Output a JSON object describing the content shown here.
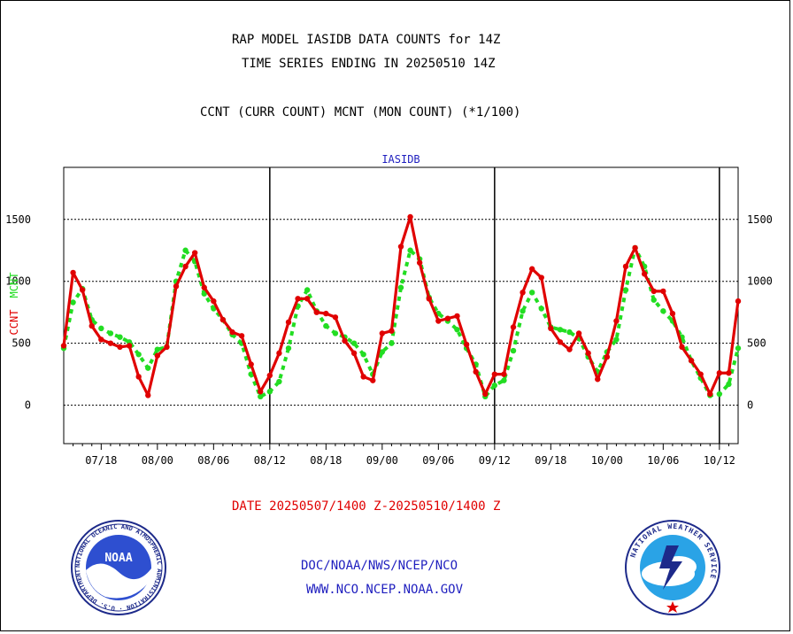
{
  "header": {
    "title_line1": "RAP MODEL IASIDB DATA COUNTS for 14Z",
    "title_line2": "TIME SERIES ENDING IN 20250510 14Z",
    "legend_line": "CCNT (CURR COUNT) MCNT (MON COUNT) (*1/100)"
  },
  "footer": {
    "date_range": "DATE 20250507/1400 Z-20250510/1400 Z",
    "org_path": "DOC/NOAA/NWS/NCEP/NCO",
    "website": "WWW.NCO.NCEP.NOAA.GOV"
  },
  "logos": {
    "noaa_text": "NOAA",
    "noaa_ring_text": "NATIONAL OCEANIC AND ATMOSPHERIC ADMINISTRATION · U.S. DEPARTMENT OF COMMERCE",
    "nws_ring_text": "NATIONAL WEATHER SERVICE"
  },
  "colors": {
    "ccnt": "#e00000",
    "mcnt": "#22dd22",
    "panel_label": "#1f1fbf"
  },
  "chart_data": {
    "type": "line",
    "title": "IASIDB",
    "ylabel_ccnt": "CCNT",
    "ylabel_mcnt": "MCNT",
    "ylim": [
      -310,
      1920
    ],
    "yticks": [
      0,
      500,
      1000,
      1500
    ],
    "grid": true,
    "xlim": [
      0,
      72
    ],
    "x_tick_labels": [
      "07/18",
      "08/00",
      "08/06",
      "08/12",
      "08/18",
      "09/00",
      "09/06",
      "09/12",
      "09/18",
      "10/00",
      "10/06",
      "10/12"
    ],
    "x_tick_positions": [
      4,
      10,
      16,
      22,
      28,
      34,
      40,
      46,
      52,
      58,
      64,
      70
    ],
    "day_boundaries": [
      22,
      46,
      70
    ],
    "series": [
      {
        "name": "CCNT",
        "x": [
          0,
          1,
          2,
          3,
          4,
          5,
          6,
          7,
          8,
          9,
          10,
          11,
          12,
          13,
          14,
          15,
          16,
          17,
          18,
          19,
          20,
          21,
          22,
          23,
          24,
          25,
          26,
          27,
          28,
          29,
          30,
          31,
          32,
          33,
          34,
          35,
          36,
          37,
          38,
          39,
          40,
          41,
          42,
          43,
          44,
          45,
          46,
          47,
          48,
          49,
          50,
          51,
          52,
          53,
          54,
          55,
          56,
          57,
          58,
          59,
          60,
          61,
          62,
          63,
          64,
          65,
          66,
          67,
          68,
          69,
          70,
          71,
          72
        ],
        "values": [
          480,
          1070,
          930,
          640,
          530,
          500,
          470,
          480,
          230,
          80,
          400,
          470,
          960,
          1120,
          1230,
          950,
          840,
          690,
          590,
          560,
          330,
          110,
          240,
          420,
          670,
          860,
          860,
          750,
          740,
          710,
          520,
          420,
          230,
          200,
          580,
          600,
          1280,
          1520,
          1150,
          860,
          680,
          700,
          720,
          490,
          270,
          90,
          250,
          250,
          630,
          910,
          1100,
          1030,
          620,
          510,
          450,
          580,
          420,
          210,
          390,
          680,
          1120,
          1270,
          1060,
          920,
          920,
          740,
          470,
          360,
          250,
          90,
          260,
          260,
          840
        ]
      },
      {
        "name": "MCNT",
        "x": [
          0,
          1,
          2,
          3,
          4,
          5,
          6,
          7,
          8,
          9,
          10,
          11,
          12,
          13,
          14,
          15,
          16,
          17,
          18,
          19,
          20,
          21,
          22,
          23,
          24,
          25,
          26,
          27,
          28,
          29,
          30,
          31,
          32,
          33,
          34,
          35,
          36,
          37,
          38,
          39,
          40,
          41,
          42,
          43,
          44,
          45,
          46,
          47,
          48,
          49,
          50,
          51,
          52,
          53,
          54,
          55,
          56,
          57,
          58,
          59,
          60,
          61,
          62,
          63,
          64,
          65,
          66,
          67,
          68,
          69,
          70,
          71,
          72
        ],
        "values": [
          460,
          830,
          940,
          690,
          620,
          580,
          550,
          510,
          410,
          300,
          450,
          470,
          1000,
          1250,
          1160,
          900,
          780,
          690,
          570,
          500,
          250,
          70,
          110,
          190,
          460,
          800,
          930,
          760,
          640,
          580,
          550,
          500,
          410,
          250,
          430,
          500,
          950,
          1250,
          1180,
          870,
          740,
          680,
          610,
          460,
          330,
          70,
          160,
          200,
          440,
          760,
          910,
          780,
          630,
          610,
          590,
          540,
          390,
          270,
          430,
          530,
          930,
          1270,
          1120,
          850,
          760,
          680,
          550,
          360,
          220,
          80,
          90,
          170,
          460
        ]
      }
    ]
  }
}
